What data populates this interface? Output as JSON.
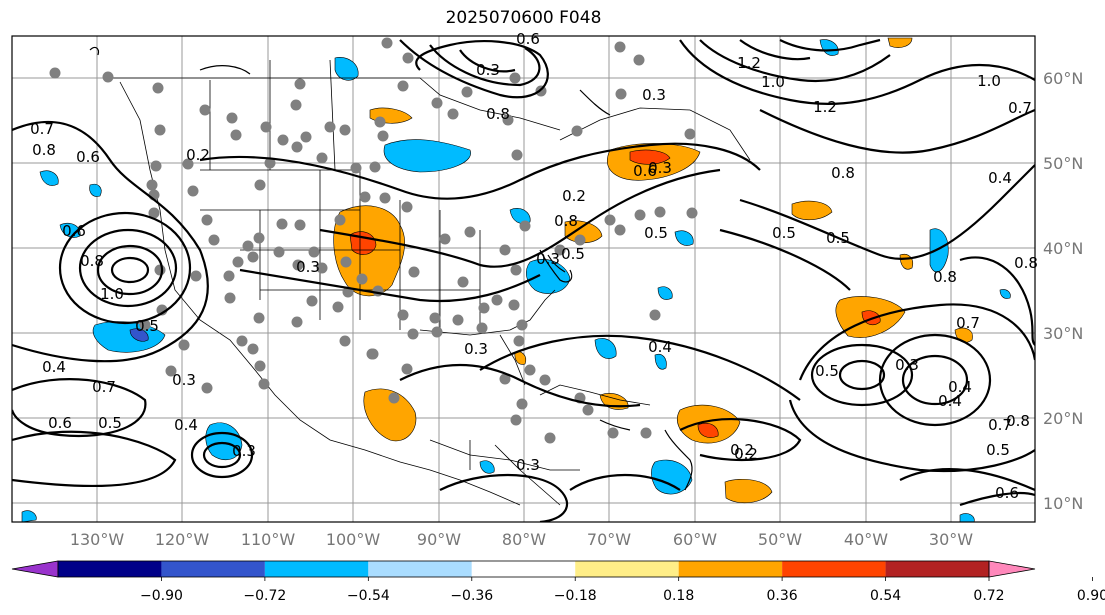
{
  "title": "2025070600 F048",
  "lon_labels": [
    "130°W",
    "120°W",
    "110°W",
    "100°W",
    "90°W",
    "80°W",
    "70°W",
    "60°W",
    "50°W",
    "40°W",
    "30°W"
  ],
  "lat_labels": [
    "60°N",
    "50°N",
    "40°N",
    "30°N",
    "20°N",
    "10°N"
  ],
  "colorbar": {
    "colors": [
      "#9933cc",
      "#000088",
      "#3355cc",
      "#00bbff",
      "#aaddff",
      "#ffffff",
      "#ffee88",
      "#ffa500",
      "#ff4400",
      "#b22222",
      "#ff88bb"
    ],
    "ticks": [
      "−0.90",
      "−0.72",
      "−0.54",
      "−0.36",
      "−0.18",
      "0.18",
      "0.36",
      "0.54",
      "0.72",
      "0.90"
    ]
  },
  "contour_labels": [
    "0.7",
    "0.8",
    "0.6",
    "0.2",
    "0.6",
    "0.8",
    "1.0",
    "0.5",
    "0.4",
    "0.7",
    "0.6",
    "0.5",
    "0.3",
    "0.4",
    "0.3",
    "0.3",
    "0.3",
    "0.6",
    "0.8",
    "0.2",
    "0.3",
    "0.4",
    "1.2",
    "1.0",
    "1.2",
    "0.4",
    "0.7",
    "1.0",
    "0.3",
    "0.5",
    "0.5",
    "0.8",
    "0.6",
    "0.8",
    "0.5",
    "0.5",
    "0.8",
    "0.3",
    "0.2",
    "0.3",
    "0.5",
    "0.3",
    "0.4",
    "0.3",
    "0.7",
    "0.5",
    "0.8",
    "0.8",
    "0.6",
    "0.2",
    "0.7",
    "0.4"
  ]
}
